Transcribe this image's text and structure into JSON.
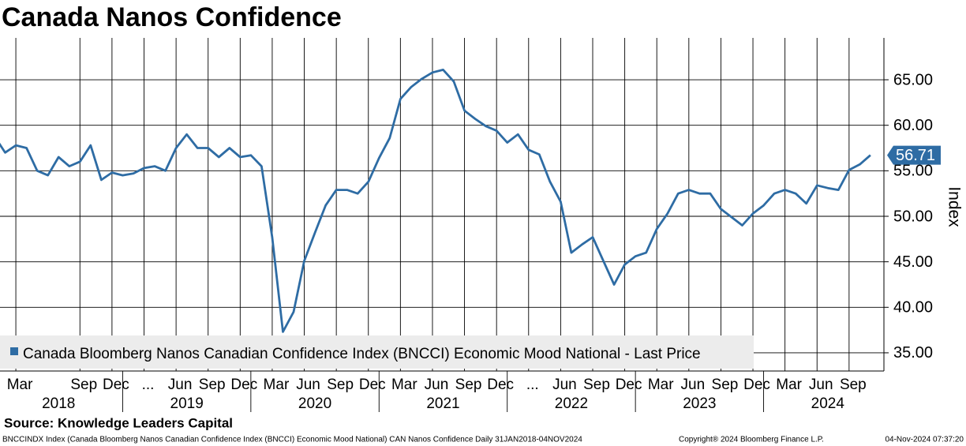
{
  "chart_data": {
    "type": "line",
    "title": "Canada Nanos Confidence",
    "source": "Source: Knowledge Leaders Capital",
    "footer_left": "BNCCINDX Index (Canada Bloomberg Nanos Canadian Confidence Index (BNCCI) Economic Mood National) CAN Nanos Confidence  Daily 31JAN2018-04NOV2024",
    "footer_center": "Copyright® 2024 Bloomberg Finance L.P.",
    "footer_right": "04-Nov-2024 07:37:20",
    "y_label": "Index",
    "last_value": 56.71,
    "grid": true,
    "x": [
      "2018-01",
      "2018-02",
      "2018-03",
      "2018-04",
      "2018-05",
      "2018-06",
      "2018-07",
      "2018-08",
      "2018-09",
      "2018-10",
      "2018-11",
      "2018-12",
      "2019-01",
      "2019-02",
      "2019-03",
      "2019-04",
      "2019-05",
      "2019-06",
      "2019-07",
      "2019-08",
      "2019-09",
      "2019-10",
      "2019-11",
      "2019-12",
      "2020-01",
      "2020-02",
      "2020-03",
      "2020-04",
      "2020-05",
      "2020-06",
      "2020-07",
      "2020-08",
      "2020-09",
      "2020-10",
      "2020-11",
      "2020-12",
      "2021-01",
      "2021-02",
      "2021-03",
      "2021-04",
      "2021-05",
      "2021-06",
      "2021-07",
      "2021-08",
      "2021-09",
      "2021-10",
      "2021-11",
      "2021-12",
      "2022-01",
      "2022-02",
      "2022-03",
      "2022-04",
      "2022-05",
      "2022-06",
      "2022-07",
      "2022-08",
      "2022-09",
      "2022-10",
      "2022-11",
      "2022-12",
      "2023-01",
      "2023-02",
      "2023-03",
      "2023-04",
      "2023-05",
      "2023-06",
      "2023-07",
      "2023-08",
      "2023-09",
      "2023-10",
      "2023-11",
      "2023-12",
      "2024-01",
      "2024-02",
      "2024-03",
      "2024-04",
      "2024-05",
      "2024-06",
      "2024-07",
      "2024-08",
      "2024-09",
      "2024-10",
      "2024-11"
    ],
    "series": [
      {
        "name": "Canada Bloomberg Nanos Canadian Confidence Index (BNCCI) Economic Mood National - Last Price",
        "color": "#2e6ca4",
        "values": [
          58.8,
          57.0,
          57.8,
          57.5,
          55.0,
          54.5,
          56.5,
          55.5,
          56.0,
          57.8,
          54.0,
          54.8,
          54.5,
          54.7,
          55.3,
          55.5,
          55.0,
          57.5,
          59.0,
          57.5,
          57.5,
          56.5,
          57.5,
          56.5,
          56.7,
          55.5,
          47.7,
          37.3,
          39.5,
          45.1,
          48.2,
          51.2,
          52.9,
          52.9,
          52.5,
          53.8,
          56.4,
          58.6,
          62.9,
          64.2,
          65.1,
          65.8,
          66.1,
          64.8,
          61.6,
          60.7,
          59.9,
          59.4,
          58.1,
          59.0,
          57.3,
          56.8,
          53.8,
          51.6,
          46.0,
          46.9,
          47.7,
          45.1,
          42.5,
          44.7,
          45.6,
          46.0,
          48.6,
          50.3,
          52.5,
          52.9,
          52.5,
          52.5,
          50.8,
          49.9,
          49.0,
          50.3,
          51.2,
          52.5,
          52.9,
          52.5,
          51.4,
          53.4,
          53.1,
          52.9,
          55.1,
          55.7,
          56.71
        ]
      }
    ],
    "xlim": [
      "2018-01",
      "2025-01"
    ],
    "xticks": [
      {
        "value": "2018-03",
        "label": "Mar"
      },
      {
        "value": "2018-09",
        "label": "Sep"
      },
      {
        "value": "2018-12",
        "label": "Dec"
      },
      {
        "value": "2019-03",
        "label": "..."
      },
      {
        "value": "2019-06",
        "label": "Jun"
      },
      {
        "value": "2019-09",
        "label": "Sep"
      },
      {
        "value": "2019-12",
        "label": "Dec"
      },
      {
        "value": "2020-03",
        "label": "Mar"
      },
      {
        "value": "2020-06",
        "label": "Jun"
      },
      {
        "value": "2020-09",
        "label": "Sep"
      },
      {
        "value": "2020-12",
        "label": "Dec"
      },
      {
        "value": "2021-03",
        "label": "Mar"
      },
      {
        "value": "2021-06",
        "label": "Jun"
      },
      {
        "value": "2021-09",
        "label": "Sep"
      },
      {
        "value": "2021-12",
        "label": "Dec"
      },
      {
        "value": "2022-03",
        "label": "..."
      },
      {
        "value": "2022-06",
        "label": "Jun"
      },
      {
        "value": "2022-09",
        "label": "Sep"
      },
      {
        "value": "2022-12",
        "label": "Dec"
      },
      {
        "value": "2023-03",
        "label": "Mar"
      },
      {
        "value": "2023-06",
        "label": "Jun"
      },
      {
        "value": "2023-09",
        "label": "Sep"
      },
      {
        "value": "2023-12",
        "label": "Dec"
      },
      {
        "value": "2024-03",
        "label": "Mar"
      },
      {
        "value": "2024-06",
        "label": "Jun"
      },
      {
        "value": "2024-09",
        "label": "Sep"
      }
    ],
    "xtick_years": [
      2018,
      2019,
      2020,
      2021,
      2022,
      2023,
      2024
    ],
    "ylim": [
      33,
      69.6
    ],
    "yticks": [
      {
        "value": 35,
        "label": "35.00"
      },
      {
        "value": 40,
        "label": "40.00"
      },
      {
        "value": 45,
        "label": "45.00"
      },
      {
        "value": 50,
        "label": "50.00"
      },
      {
        "value": 55,
        "label": "55.00"
      },
      {
        "value": 60,
        "label": "60.00"
      },
      {
        "value": 65,
        "label": "65.00"
      }
    ]
  }
}
